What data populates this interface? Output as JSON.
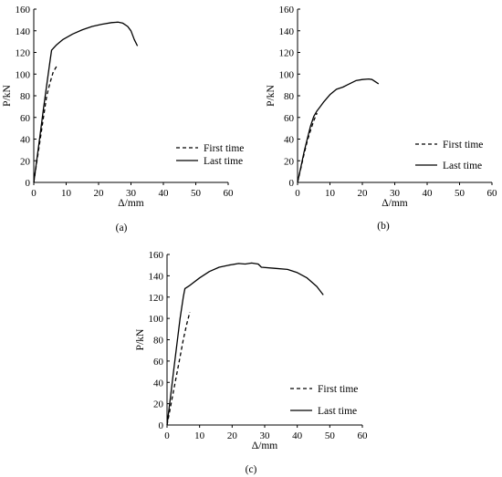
{
  "chart_data": [
    {
      "type": "line",
      "panel_label": "(a)",
      "xlabel": "Δ/mm",
      "ylabel": "P/kN",
      "xlim": [
        0,
        60
      ],
      "ylim": [
        0,
        160
      ],
      "xticks": [
        0,
        10,
        20,
        30,
        40,
        50,
        60
      ],
      "yticks": [
        0,
        20,
        40,
        60,
        80,
        100,
        120,
        140,
        160
      ],
      "grid": false,
      "legend_position": "bottom-right",
      "series": [
        {
          "name": "First time",
          "style": "dashed",
          "points": [
            [
              0,
              0
            ],
            [
              1,
              20
            ],
            [
              2,
              40
            ],
            [
              3,
              60
            ],
            [
              4,
              80
            ],
            [
              5,
              92
            ],
            [
              6,
              102
            ],
            [
              7,
              107
            ]
          ]
        },
        {
          "name": "Last time",
          "style": "solid",
          "points": [
            [
              0,
              0
            ],
            [
              1,
              22
            ],
            [
              2,
              45
            ],
            [
              3,
              68
            ],
            [
              4,
              90
            ],
            [
              5,
              112
            ],
            [
              5.5,
              122
            ],
            [
              7,
              127
            ],
            [
              9,
              132
            ],
            [
              12,
              137
            ],
            [
              15,
              141
            ],
            [
              18,
              144
            ],
            [
              21,
              146
            ],
            [
              24,
              147.5
            ],
            [
              26,
              148
            ],
            [
              27.5,
              147
            ],
            [
              29,
              144
            ],
            [
              30,
              140
            ],
            [
              31,
              132
            ],
            [
              32,
              126
            ]
          ]
        }
      ]
    },
    {
      "type": "line",
      "panel_label": "(b)",
      "xlabel": "Δ/mm",
      "ylabel": "P/kN",
      "xlim": [
        0,
        60
      ],
      "ylim": [
        0,
        160
      ],
      "xticks": [
        0,
        10,
        20,
        30,
        40,
        50,
        60
      ],
      "yticks": [
        0,
        20,
        40,
        60,
        80,
        100,
        120,
        140,
        160
      ],
      "grid": false,
      "legend_position": "bottom-right",
      "series": [
        {
          "name": "First time",
          "style": "dashed",
          "points": [
            [
              0,
              0
            ],
            [
              1,
              13
            ],
            [
              2,
              26
            ],
            [
              3,
              38
            ],
            [
              4,
              48
            ],
            [
              5,
              57
            ],
            [
              6,
              64
            ]
          ]
        },
        {
          "name": "Last time",
          "style": "solid",
          "points": [
            [
              0,
              0
            ],
            [
              1,
              14
            ],
            [
              2,
              28
            ],
            [
              3,
              40
            ],
            [
              4,
              52
            ],
            [
              5,
              61
            ],
            [
              6,
              66
            ],
            [
              7,
              70
            ],
            [
              8,
              74
            ],
            [
              10,
              81
            ],
            [
              12,
              86
            ],
            [
              14,
              88
            ],
            [
              16,
              91
            ],
            [
              18,
              94
            ],
            [
              20,
              95
            ],
            [
              22,
              95.5
            ],
            [
              23,
              95
            ],
            [
              24,
              93
            ],
            [
              25,
              91
            ]
          ]
        }
      ]
    },
    {
      "type": "line",
      "panel_label": "(c)",
      "xlabel": "Δ/mm",
      "ylabel": "P/kN",
      "xlim": [
        0,
        60
      ],
      "ylim": [
        0,
        160
      ],
      "xticks": [
        0,
        10,
        20,
        30,
        40,
        50,
        60
      ],
      "yticks": [
        0,
        20,
        40,
        60,
        80,
        100,
        120,
        140,
        160
      ],
      "grid": false,
      "legend_position": "bottom-right",
      "series": [
        {
          "name": "First time",
          "style": "dashed",
          "points": [
            [
              0,
              0
            ],
            [
              1,
              16
            ],
            [
              2,
              32
            ],
            [
              3,
              48
            ],
            [
              4,
              64
            ],
            [
              5,
              80
            ],
            [
              6,
              94
            ],
            [
              7,
              106
            ]
          ]
        },
        {
          "name": "Last time",
          "style": "solid",
          "points": [
            [
              0,
              0
            ],
            [
              1,
              25
            ],
            [
              2,
              50
            ],
            [
              3,
              75
            ],
            [
              4,
              100
            ],
            [
              5,
              120
            ],
            [
              5.5,
              128
            ],
            [
              7,
              131
            ],
            [
              10,
              138
            ],
            [
              13,
              144
            ],
            [
              16,
              148
            ],
            [
              19,
              150
            ],
            [
              22,
              151.5
            ],
            [
              24,
              151
            ],
            [
              26,
              152
            ],
            [
              28,
              151
            ],
            [
              29,
              148
            ],
            [
              33,
              147
            ],
            [
              37,
              146
            ],
            [
              40,
              143
            ],
            [
              43,
              138
            ],
            [
              46,
              130
            ],
            [
              48,
              122
            ]
          ]
        }
      ]
    }
  ]
}
